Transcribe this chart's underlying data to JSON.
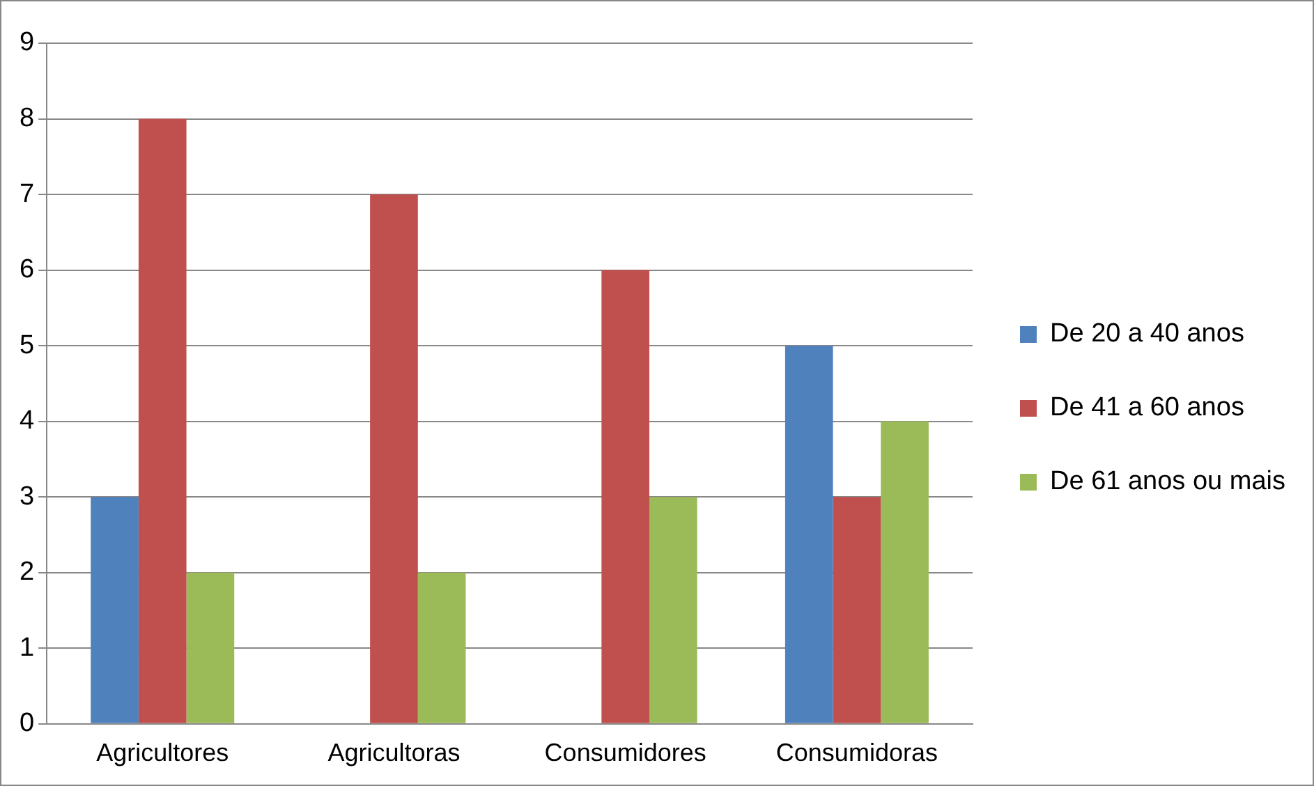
{
  "chart_data": {
    "type": "bar",
    "categories": [
      "Agricultores",
      "Agricultoras",
      "Consumidores",
      "Consumidoras"
    ],
    "series": [
      {
        "name": "De 20 a 40 anos",
        "color": "#4f81bd",
        "values": [
          3,
          0,
          0,
          5
        ]
      },
      {
        "name": "De 41 a 60 anos",
        "color": "#c0504d",
        "values": [
          8,
          7,
          6,
          3
        ]
      },
      {
        "name": "De 61 anos ou mais",
        "color": "#9bbb59",
        "values": [
          2,
          2,
          3,
          4
        ]
      }
    ],
    "ylim": [
      0,
      9
    ],
    "yticks": [
      0,
      1,
      2,
      3,
      4,
      5,
      6,
      7,
      8,
      9
    ],
    "grid": "y",
    "legend": "right"
  }
}
